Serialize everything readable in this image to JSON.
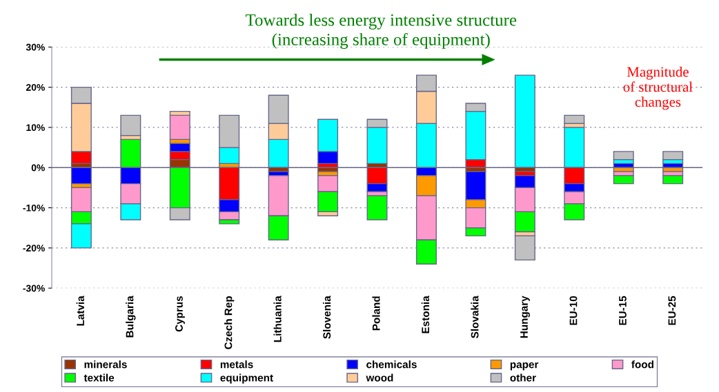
{
  "chart_data": {
    "type": "bar",
    "stacked": true,
    "title": "Towards less energy intensive structure\n(increasing share of equipment)",
    "annotations": [
      "Magnitude\nof structural\nchanges"
    ],
    "categories": [
      "Latvia",
      "Bulgaria",
      "Cyprus",
      "Czech Rep",
      "Lithuania",
      "Slovenia",
      "Poland",
      "Estonia",
      "Slovakia",
      "Hungary",
      "EU-10",
      "EU-15",
      "EU-25"
    ],
    "series": [
      {
        "name": "minerals",
        "color": "#993300",
        "values": [
          1,
          null,
          2,
          null,
          -1,
          -1,
          1,
          null,
          -1,
          -1,
          null,
          null,
          null
        ]
      },
      {
        "name": "metals",
        "color": "#ff0000",
        "values": [
          3,
          null,
          2,
          -8,
          null,
          1,
          -4,
          null,
          2,
          -1,
          -4,
          null,
          null
        ]
      },
      {
        "name": "chemicals",
        "color": "#0000ff",
        "values": [
          -4,
          -4,
          2,
          -3,
          -1,
          3,
          -2,
          -2,
          -7,
          -3,
          -2,
          1,
          1
        ]
      },
      {
        "name": "paper",
        "color": "#ff9900",
        "values": [
          -1,
          null,
          1,
          1,
          null,
          -1,
          null,
          -5,
          -2,
          null,
          null,
          -1,
          -1
        ]
      },
      {
        "name": "food",
        "color": "#ff99cc",
        "values": [
          -6,
          -5,
          6,
          -2,
          -10,
          -4,
          -1,
          -11,
          -5,
          -6,
          -3,
          -1,
          -1
        ]
      },
      {
        "name": "textile",
        "color": "#00ff00",
        "values": [
          -3,
          7,
          -10,
          -1,
          -6,
          -5,
          -6,
          -6,
          -2,
          -5,
          -4,
          -2,
          -2
        ]
      },
      {
        "name": "equipment",
        "color": "#00ffff",
        "values": [
          -6,
          -4,
          null,
          4,
          7,
          8,
          9,
          11,
          12,
          23,
          10,
          1,
          1
        ]
      },
      {
        "name": "wood",
        "color": "#ffcc99",
        "values": [
          12,
          1,
          1,
          null,
          4,
          -1,
          null,
          8,
          null,
          -1,
          1,
          null,
          null
        ]
      },
      {
        "name": "other",
        "color": "#c0c0c0",
        "values": [
          4,
          5,
          -3,
          8,
          7,
          null,
          2,
          4,
          2,
          -6,
          2,
          2,
          2
        ]
      }
    ],
    "ylim": [
      -30,
      30
    ],
    "yticks": [
      {
        "value": -30,
        "label": "-30%"
      },
      {
        "value": -20,
        "label": "-20%"
      },
      {
        "value": -10,
        "label": "-10%"
      },
      {
        "value": 0,
        "label": "0%"
      },
      {
        "value": 10,
        "label": "10%"
      },
      {
        "value": 20,
        "label": "20%"
      },
      {
        "value": 30,
        "label": "30%"
      }
    ],
    "grid": "y",
    "legend": "bottom"
  }
}
